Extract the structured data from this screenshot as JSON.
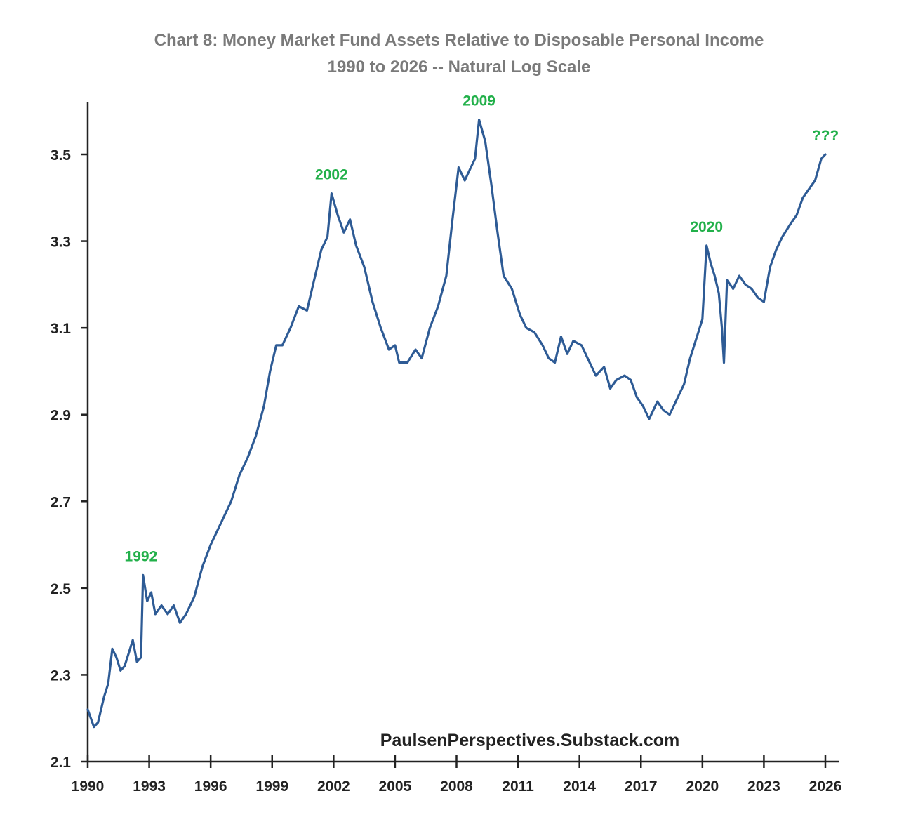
{
  "chart_data": {
    "type": "line",
    "title": "Chart 8: Money Market Fund Assets Relative to Disposable Personal Income",
    "subtitle": "1990 to 2026 -- Natural Log Scale",
    "xlabel": "",
    "ylabel": "",
    "xlim": [
      1990,
      2026.5
    ],
    "ylim": [
      2.1,
      3.6
    ],
    "x_ticks": [
      "1990",
      "1993",
      "1996",
      "1999",
      "2002",
      "2005",
      "2008",
      "2011",
      "2014",
      "2017",
      "2020",
      "2023",
      "2026"
    ],
    "y_ticks": [
      "2.1",
      "2.3",
      "2.5",
      "2.7",
      "2.9",
      "3.1",
      "3.3",
      "3.5"
    ],
    "grid": false,
    "source": "PaulsenPerspectives.Substack.com",
    "line_color": "#2e5b95",
    "annotation_color": "#22b04a",
    "annotations": [
      {
        "label": "1992",
        "x": 1992.6,
        "y": 2.53
      },
      {
        "label": "2002",
        "x": 2001.9,
        "y": 3.41
      },
      {
        "label": "2009",
        "x": 2009.1,
        "y": 3.58
      },
      {
        "label": "2020",
        "x": 2020.2,
        "y": 3.29
      },
      {
        "label": "???",
        "x": 2026.0,
        "y": 3.5
      }
    ],
    "series": [
      {
        "points": [
          [
            1990.0,
            2.22
          ],
          [
            1990.3,
            2.18
          ],
          [
            1990.5,
            2.19
          ],
          [
            1990.8,
            2.25
          ],
          [
            1991.0,
            2.28
          ],
          [
            1991.2,
            2.36
          ],
          [
            1991.4,
            2.34
          ],
          [
            1991.6,
            2.31
          ],
          [
            1991.8,
            2.32
          ],
          [
            1992.0,
            2.35
          ],
          [
            1992.2,
            2.38
          ],
          [
            1992.4,
            2.33
          ],
          [
            1992.6,
            2.34
          ],
          [
            1992.7,
            2.53
          ],
          [
            1992.9,
            2.47
          ],
          [
            1993.1,
            2.49
          ],
          [
            1993.3,
            2.44
          ],
          [
            1993.6,
            2.46
          ],
          [
            1993.9,
            2.44
          ],
          [
            1994.2,
            2.46
          ],
          [
            1994.5,
            2.42
          ],
          [
            1994.8,
            2.44
          ],
          [
            1995.2,
            2.48
          ],
          [
            1995.6,
            2.55
          ],
          [
            1996.0,
            2.6
          ],
          [
            1996.5,
            2.65
          ],
          [
            1997.0,
            2.7
          ],
          [
            1997.4,
            2.76
          ],
          [
            1997.8,
            2.8
          ],
          [
            1998.2,
            2.85
          ],
          [
            1998.6,
            2.92
          ],
          [
            1998.9,
            3.0
          ],
          [
            1999.2,
            3.06
          ],
          [
            1999.5,
            3.06
          ],
          [
            1999.9,
            3.1
          ],
          [
            2000.3,
            3.15
          ],
          [
            2000.7,
            3.14
          ],
          [
            2001.0,
            3.2
          ],
          [
            2001.4,
            3.28
          ],
          [
            2001.7,
            3.31
          ],
          [
            2001.9,
            3.41
          ],
          [
            2002.2,
            3.36
          ],
          [
            2002.5,
            3.32
          ],
          [
            2002.8,
            3.35
          ],
          [
            2003.1,
            3.29
          ],
          [
            2003.5,
            3.24
          ],
          [
            2003.9,
            3.16
          ],
          [
            2004.3,
            3.1
          ],
          [
            2004.7,
            3.05
          ],
          [
            2005.0,
            3.06
          ],
          [
            2005.2,
            3.02
          ],
          [
            2005.6,
            3.02
          ],
          [
            2006.0,
            3.05
          ],
          [
            2006.3,
            3.03
          ],
          [
            2006.7,
            3.1
          ],
          [
            2007.1,
            3.15
          ],
          [
            2007.5,
            3.22
          ],
          [
            2007.8,
            3.35
          ],
          [
            2008.1,
            3.47
          ],
          [
            2008.4,
            3.44
          ],
          [
            2008.7,
            3.47
          ],
          [
            2008.9,
            3.49
          ],
          [
            2009.1,
            3.58
          ],
          [
            2009.4,
            3.53
          ],
          [
            2009.7,
            3.43
          ],
          [
            2010.0,
            3.32
          ],
          [
            2010.3,
            3.22
          ],
          [
            2010.7,
            3.19
          ],
          [
            2011.1,
            3.13
          ],
          [
            2011.4,
            3.1
          ],
          [
            2011.8,
            3.09
          ],
          [
            2012.2,
            3.06
          ],
          [
            2012.5,
            3.03
          ],
          [
            2012.8,
            3.02
          ],
          [
            2013.1,
            3.08
          ],
          [
            2013.4,
            3.04
          ],
          [
            2013.7,
            3.07
          ],
          [
            2014.1,
            3.06
          ],
          [
            2014.4,
            3.03
          ],
          [
            2014.8,
            2.99
          ],
          [
            2015.2,
            3.01
          ],
          [
            2015.5,
            2.96
          ],
          [
            2015.8,
            2.98
          ],
          [
            2016.2,
            2.99
          ],
          [
            2016.5,
            2.98
          ],
          [
            2016.8,
            2.94
          ],
          [
            2017.1,
            2.92
          ],
          [
            2017.4,
            2.89
          ],
          [
            2017.8,
            2.93
          ],
          [
            2018.1,
            2.91
          ],
          [
            2018.4,
            2.9
          ],
          [
            2018.8,
            2.94
          ],
          [
            2019.1,
            2.97
          ],
          [
            2019.4,
            3.03
          ],
          [
            2019.8,
            3.09
          ],
          [
            2020.0,
            3.12
          ],
          [
            2020.2,
            3.29
          ],
          [
            2020.4,
            3.25
          ],
          [
            2020.6,
            3.22
          ],
          [
            2020.8,
            3.18
          ],
          [
            2020.95,
            3.1
          ],
          [
            2021.05,
            3.02
          ],
          [
            2021.2,
            3.21
          ],
          [
            2021.5,
            3.19
          ],
          [
            2021.8,
            3.22
          ],
          [
            2022.1,
            3.2
          ],
          [
            2022.4,
            3.19
          ],
          [
            2022.7,
            3.17
          ],
          [
            2023.0,
            3.16
          ],
          [
            2023.3,
            3.24
          ],
          [
            2023.6,
            3.28
          ],
          [
            2023.9,
            3.31
          ],
          [
            2024.3,
            3.34
          ],
          [
            2024.6,
            3.36
          ],
          [
            2024.9,
            3.4
          ],
          [
            2025.2,
            3.42
          ],
          [
            2025.5,
            3.44
          ],
          [
            2025.8,
            3.49
          ],
          [
            2026.0,
            3.5
          ]
        ]
      }
    ]
  }
}
